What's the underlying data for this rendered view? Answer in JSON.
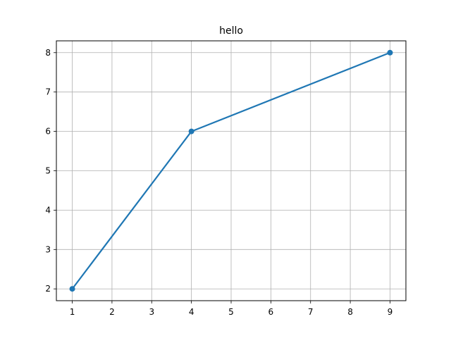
{
  "chart_data": {
    "type": "line",
    "title": "hello",
    "xlabel": "",
    "ylabel": "",
    "x": [
      1,
      4,
      9
    ],
    "series": [
      {
        "values": [
          2,
          6,
          8
        ],
        "color": "#1f77b4",
        "marker": "circle"
      }
    ],
    "xlim": [
      0.6,
      9.4
    ],
    "ylim": [
      1.7,
      8.3
    ],
    "xticks": [
      1,
      2,
      3,
      4,
      5,
      6,
      7,
      8,
      9
    ],
    "yticks": [
      2,
      3,
      4,
      5,
      6,
      7,
      8
    ],
    "grid": true,
    "grid_color": "#b0b0b0",
    "axis_color": "#000000"
  }
}
